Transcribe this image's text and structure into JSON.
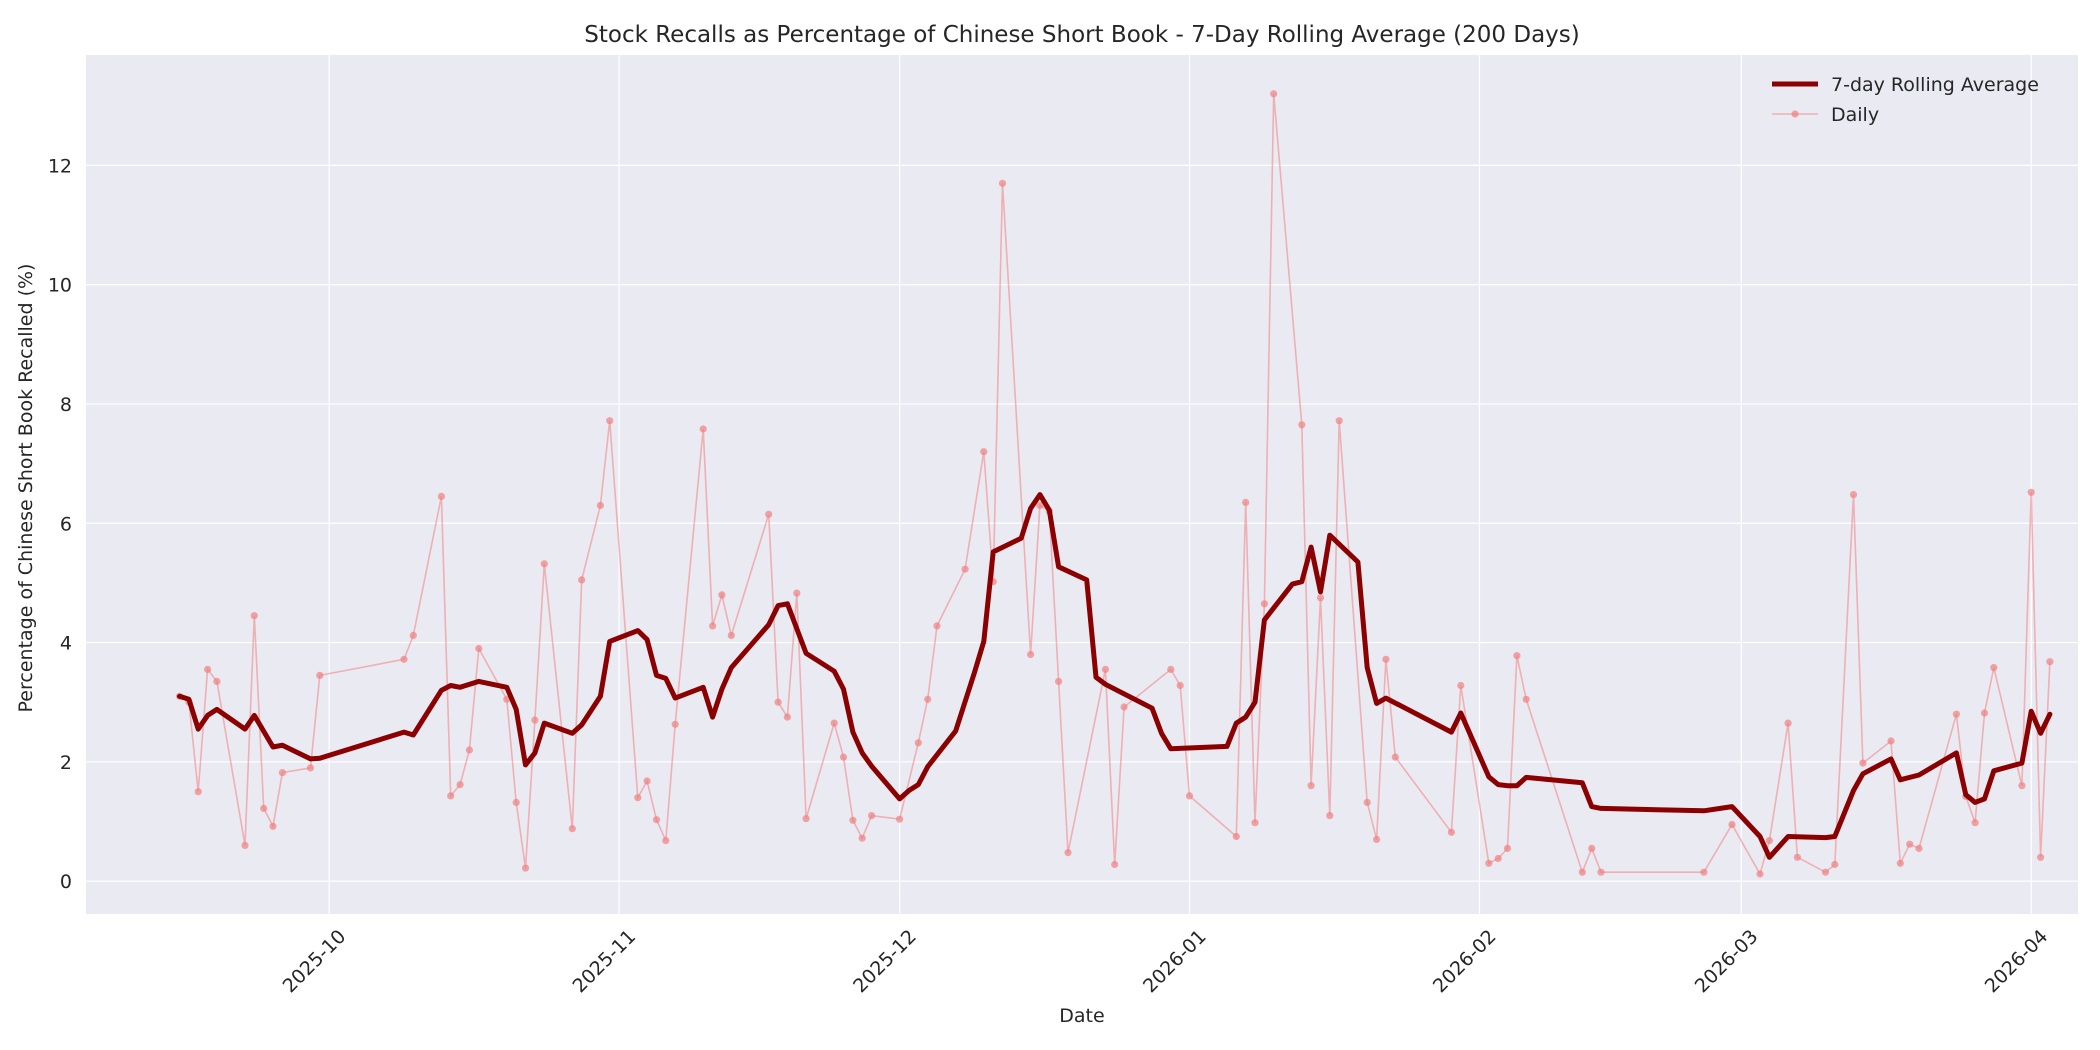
{
  "chart_data": {
    "type": "line",
    "title": "Stock Recalls as Percentage of Chinese Short Book - 7-Day Rolling Average (200 Days)",
    "xlabel": "Date",
    "ylabel": "Percentage of Chinese Short Book Recalled (%)",
    "x_range": [
      "2025-09-05",
      "2026-04-06"
    ],
    "ylim": [
      -0.55,
      13.85
    ],
    "grid": true,
    "legend_position": "top-right",
    "x_ticks": [
      "2025-10-01",
      "2025-11-01",
      "2025-12-01",
      "2026-01-01",
      "2026-02-01",
      "2026-03-01",
      "2026-04-01"
    ],
    "x_tick_labels": [
      "2025-10",
      "2025-11",
      "2025-12",
      "2026-01",
      "2026-02",
      "2026-03",
      "2026-04"
    ],
    "y_ticks": [
      0,
      2,
      4,
      6,
      8,
      10,
      12
    ],
    "y_tick_labels": [
      "0",
      "2",
      "4",
      "6",
      "8",
      "10",
      "12"
    ],
    "colors": {
      "rolling": "#8b0000",
      "daily": "#f08080",
      "plot_bg": "#eaeaf2",
      "grid": "#ffffff"
    },
    "series": [
      {
        "name": "7-day Rolling Average",
        "style": "thick-line",
        "points": [
          [
            "2025-09-15",
            3.1
          ],
          [
            "2025-09-16",
            3.05
          ],
          [
            "2025-09-17",
            2.55
          ],
          [
            "2025-09-18",
            2.78
          ],
          [
            "2025-09-19",
            2.88
          ],
          [
            "2025-09-22",
            2.55
          ],
          [
            "2025-09-23",
            2.78
          ],
          [
            "2025-09-25",
            2.25
          ],
          [
            "2025-09-26",
            2.28
          ],
          [
            "2025-09-29",
            2.05
          ],
          [
            "2025-09-30",
            2.06
          ],
          [
            "2025-10-09",
            2.5
          ],
          [
            "2025-10-10",
            2.45
          ],
          [
            "2025-10-13",
            3.2
          ],
          [
            "2025-10-14",
            3.28
          ],
          [
            "2025-10-15",
            3.25
          ],
          [
            "2025-10-17",
            3.35
          ],
          [
            "2025-10-20",
            3.25
          ],
          [
            "2025-10-21",
            2.88
          ],
          [
            "2025-10-22",
            1.95
          ],
          [
            "2025-10-23",
            2.15
          ],
          [
            "2025-10-24",
            2.65
          ],
          [
            "2025-10-27",
            2.48
          ],
          [
            "2025-10-28",
            2.62
          ],
          [
            "2025-10-30",
            3.1
          ],
          [
            "2025-10-31",
            4.02
          ],
          [
            "2025-11-03",
            4.2
          ],
          [
            "2025-11-04",
            4.05
          ],
          [
            "2025-11-05",
            3.45
          ],
          [
            "2025-11-06",
            3.4
          ],
          [
            "2025-11-07",
            3.07
          ],
          [
            "2025-11-10",
            3.25
          ],
          [
            "2025-11-11",
            2.75
          ],
          [
            "2025-11-12",
            3.22
          ],
          [
            "2025-11-13",
            3.58
          ],
          [
            "2025-11-17",
            4.3
          ],
          [
            "2025-11-18",
            4.62
          ],
          [
            "2025-11-19",
            4.65
          ],
          [
            "2025-11-21",
            3.82
          ],
          [
            "2025-11-24",
            3.52
          ],
          [
            "2025-11-25",
            3.22
          ],
          [
            "2025-11-26",
            2.5
          ],
          [
            "2025-11-27",
            2.15
          ],
          [
            "2025-11-28",
            1.93
          ],
          [
            "2025-12-01",
            1.38
          ],
          [
            "2025-12-02",
            1.52
          ],
          [
            "2025-12-03",
            1.62
          ],
          [
            "2025-12-04",
            1.92
          ],
          [
            "2025-12-07",
            2.52
          ],
          [
            "2025-12-09",
            3.5
          ],
          [
            "2025-12-10",
            4.02
          ],
          [
            "2025-12-11",
            5.52
          ],
          [
            "2025-12-14",
            5.75
          ],
          [
            "2025-12-15",
            6.25
          ],
          [
            "2025-12-16",
            6.48
          ],
          [
            "2025-12-17",
            6.22
          ],
          [
            "2025-12-18",
            5.27
          ],
          [
            "2025-12-21",
            5.05
          ],
          [
            "2025-12-22",
            3.42
          ],
          [
            "2025-12-23",
            3.3
          ],
          [
            "2025-12-28",
            2.9
          ],
          [
            "2025-12-29",
            2.48
          ],
          [
            "2025-12-30",
            2.22
          ],
          [
            "2026-01-05",
            2.26
          ],
          [
            "2026-01-06",
            2.65
          ],
          [
            "2026-01-07",
            2.75
          ],
          [
            "2026-01-08",
            3.0
          ],
          [
            "2026-01-09",
            4.38
          ],
          [
            "2026-01-12",
            4.98
          ],
          [
            "2026-01-13",
            5.02
          ],
          [
            "2026-01-14",
            5.6
          ],
          [
            "2026-01-15",
            4.85
          ],
          [
            "2026-01-16",
            5.8
          ],
          [
            "2026-01-19",
            5.35
          ],
          [
            "2026-01-20",
            3.58
          ],
          [
            "2026-01-21",
            2.98
          ],
          [
            "2026-01-22",
            3.07
          ],
          [
            "2026-01-29",
            2.5
          ],
          [
            "2026-01-30",
            2.82
          ],
          [
            "2026-02-02",
            1.75
          ],
          [
            "2026-02-03",
            1.62
          ],
          [
            "2026-02-04",
            1.6
          ],
          [
            "2026-02-05",
            1.6
          ],
          [
            "2026-02-06",
            1.74
          ],
          [
            "2026-02-12",
            1.65
          ],
          [
            "2026-02-13",
            1.25
          ],
          [
            "2026-02-14",
            1.22
          ],
          [
            "2026-02-25",
            1.18
          ],
          [
            "2026-02-28",
            1.25
          ],
          [
            "2026-03-03",
            0.75
          ],
          [
            "2026-03-04",
            0.4
          ],
          [
            "2026-03-06",
            0.75
          ],
          [
            "2026-03-10",
            0.73
          ],
          [
            "2026-03-11",
            0.75
          ],
          [
            "2026-03-13",
            1.52
          ],
          [
            "2026-03-14",
            1.8
          ],
          [
            "2026-03-17",
            2.05
          ],
          [
            "2026-03-18",
            1.7
          ],
          [
            "2026-03-20",
            1.78
          ],
          [
            "2026-03-24",
            2.15
          ],
          [
            "2026-03-25",
            1.45
          ],
          [
            "2026-03-26",
            1.32
          ],
          [
            "2026-03-27",
            1.38
          ],
          [
            "2026-03-28",
            1.85
          ],
          [
            "2026-03-31",
            1.98
          ],
          [
            "2026-04-01",
            2.85
          ],
          [
            "2026-04-02",
            2.48
          ],
          [
            "2026-04-03",
            2.8
          ]
        ]
      },
      {
        "name": "Daily",
        "style": "thin-line-markers",
        "points": [
          [
            "2025-09-15",
            3.1
          ],
          [
            "2025-09-16",
            3.0
          ],
          [
            "2025-09-17",
            1.5
          ],
          [
            "2025-09-18",
            3.55
          ],
          [
            "2025-09-19",
            3.35
          ],
          [
            "2025-09-22",
            0.6
          ],
          [
            "2025-09-23",
            4.45
          ],
          [
            "2025-09-24",
            1.22
          ],
          [
            "2025-09-25",
            0.92
          ],
          [
            "2025-09-26",
            1.82
          ],
          [
            "2025-09-29",
            1.9
          ],
          [
            "2025-09-30",
            3.45
          ],
          [
            "2025-10-09",
            3.72
          ],
          [
            "2025-10-10",
            4.12
          ],
          [
            "2025-10-13",
            6.45
          ],
          [
            "2025-10-14",
            1.43
          ],
          [
            "2025-10-15",
            1.62
          ],
          [
            "2025-10-16",
            2.2
          ],
          [
            "2025-10-17",
            3.9
          ],
          [
            "2025-10-20",
            3.05
          ],
          [
            "2025-10-21",
            1.32
          ],
          [
            "2025-10-22",
            0.22
          ],
          [
            "2025-10-23",
            2.7
          ],
          [
            "2025-10-24",
            5.32
          ],
          [
            "2025-10-27",
            0.88
          ],
          [
            "2025-10-28",
            5.05
          ],
          [
            "2025-10-30",
            6.3
          ],
          [
            "2025-10-31",
            7.72
          ],
          [
            "2025-11-03",
            1.4
          ],
          [
            "2025-11-04",
            1.68
          ],
          [
            "2025-11-05",
            1.03
          ],
          [
            "2025-11-06",
            0.68
          ],
          [
            "2025-11-07",
            2.63
          ],
          [
            "2025-11-10",
            7.58
          ],
          [
            "2025-11-11",
            4.28
          ],
          [
            "2025-11-12",
            4.8
          ],
          [
            "2025-11-13",
            4.12
          ],
          [
            "2025-11-17",
            6.15
          ],
          [
            "2025-11-18",
            3.0
          ],
          [
            "2025-11-19",
            2.75
          ],
          [
            "2025-11-20",
            4.83
          ],
          [
            "2025-11-21",
            1.05
          ],
          [
            "2025-11-24",
            2.65
          ],
          [
            "2025-11-25",
            2.08
          ],
          [
            "2025-11-26",
            1.02
          ],
          [
            "2025-11-27",
            0.72
          ],
          [
            "2025-11-28",
            1.1
          ],
          [
            "2025-12-01",
            1.04
          ],
          [
            "2025-12-03",
            2.32
          ],
          [
            "2025-12-04",
            3.05
          ],
          [
            "2025-12-05",
            4.28
          ],
          [
            "2025-12-08",
            5.23
          ],
          [
            "2025-12-10",
            7.2
          ],
          [
            "2025-12-11",
            5.02
          ],
          [
            "2025-12-12",
            11.7
          ],
          [
            "2025-12-15",
            3.8
          ],
          [
            "2025-12-16",
            6.3
          ],
          [
            "2025-12-17",
            6.2
          ],
          [
            "2025-12-18",
            3.35
          ],
          [
            "2025-12-19",
            0.48
          ],
          [
            "2025-12-23",
            3.55
          ],
          [
            "2025-12-24",
            0.28
          ],
          [
            "2025-12-25",
            2.92
          ],
          [
            "2025-12-30",
            3.55
          ],
          [
            "2025-12-31",
            3.28
          ],
          [
            "2026-01-01",
            1.43
          ],
          [
            "2026-01-06",
            0.75
          ],
          [
            "2026-01-07",
            6.35
          ],
          [
            "2026-01-08",
            0.98
          ],
          [
            "2026-01-09",
            4.65
          ],
          [
            "2026-01-10",
            13.2
          ],
          [
            "2026-01-13",
            7.65
          ],
          [
            "2026-01-14",
            1.6
          ],
          [
            "2026-01-15",
            4.75
          ],
          [
            "2026-01-16",
            1.1
          ],
          [
            "2026-01-17",
            7.72
          ],
          [
            "2026-01-20",
            1.32
          ],
          [
            "2026-01-21",
            0.7
          ],
          [
            "2026-01-22",
            3.72
          ],
          [
            "2026-01-23",
            2.08
          ],
          [
            "2026-01-29",
            0.82
          ],
          [
            "2026-01-30",
            3.28
          ],
          [
            "2026-02-02",
            0.3
          ],
          [
            "2026-02-03",
            0.38
          ],
          [
            "2026-02-04",
            0.55
          ],
          [
            "2026-02-05",
            3.78
          ],
          [
            "2026-02-06",
            3.05
          ],
          [
            "2026-02-12",
            0.15
          ],
          [
            "2026-02-13",
            0.55
          ],
          [
            "2026-02-14",
            0.15
          ],
          [
            "2026-02-25",
            0.15
          ],
          [
            "2026-02-28",
            0.95
          ],
          [
            "2026-03-03",
            0.12
          ],
          [
            "2026-03-04",
            0.68
          ],
          [
            "2026-03-06",
            2.65
          ],
          [
            "2026-03-07",
            0.4
          ],
          [
            "2026-03-10",
            0.15
          ],
          [
            "2026-03-11",
            0.28
          ],
          [
            "2026-03-13",
            6.48
          ],
          [
            "2026-03-14",
            1.98
          ],
          [
            "2026-03-17",
            2.35
          ],
          [
            "2026-03-18",
            0.3
          ],
          [
            "2026-03-19",
            0.62
          ],
          [
            "2026-03-20",
            0.55
          ],
          [
            "2026-03-24",
            2.8
          ],
          [
            "2026-03-25",
            1.42
          ],
          [
            "2026-03-26",
            0.98
          ],
          [
            "2026-03-27",
            2.82
          ],
          [
            "2026-03-28",
            3.58
          ],
          [
            "2026-03-31",
            1.6
          ],
          [
            "2026-04-01",
            6.52
          ],
          [
            "2026-04-02",
            0.4
          ],
          [
            "2026-04-03",
            3.68
          ]
        ]
      }
    ]
  }
}
